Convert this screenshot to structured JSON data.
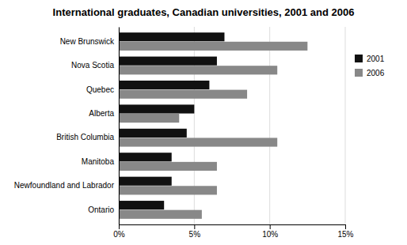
{
  "chart_data": {
    "type": "bar",
    "orientation": "horizontal",
    "title": "International graduates, Canadian universities, 2001 and 2006",
    "categories": [
      "New Brunswick",
      "Nova Scotia",
      "Quebec",
      "Alberta",
      "British Columbia",
      "Manitoba",
      "Newfoundland and Labrador",
      "Ontario"
    ],
    "series": [
      {
        "name": "2001",
        "color": "#111111",
        "values": [
          7.0,
          6.5,
          6.0,
          5.0,
          4.5,
          3.5,
          3.5,
          3.0
        ]
      },
      {
        "name": "2006",
        "color": "#888888",
        "values": [
          12.5,
          10.5,
          8.5,
          4.0,
          10.5,
          6.5,
          6.5,
          5.5
        ]
      }
    ],
    "xlim": [
      0,
      15
    ],
    "xticks": [
      {
        "value": 0,
        "label": "0%"
      },
      {
        "value": 5,
        "label": "5%"
      },
      {
        "value": 10,
        "label": "10%"
      },
      {
        "value": 15,
        "label": "15%"
      }
    ],
    "grid": true,
    "legend": "right"
  }
}
